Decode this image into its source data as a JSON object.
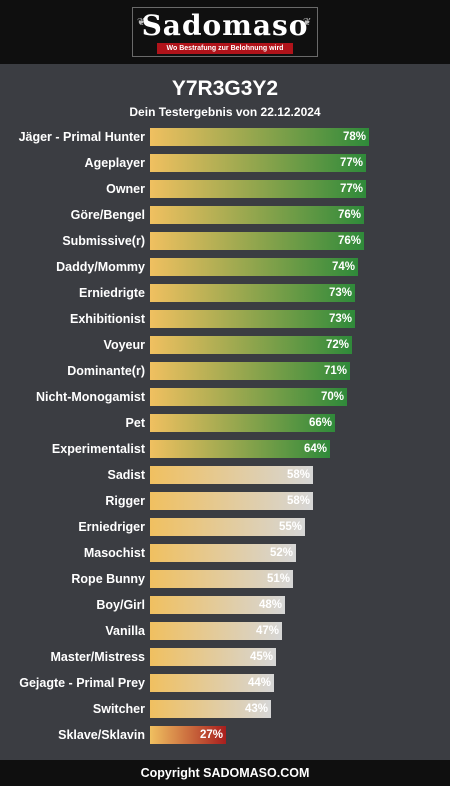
{
  "header": {
    "logo_text": "Sadomaso",
    "logo_tagline": "Wo Bestrafung zur Belohnung wird"
  },
  "title": "Y7R3G3Y2",
  "subtitle": "Dein Testergebnis von 22.12.2024",
  "footer": "Copyright SADOMASO.COM",
  "colors": {
    "background": "#3b3d42",
    "bar_start": "#f0c060",
    "high": "#2f8a3a",
    "mid": "#d6d6d6",
    "low": "#a81e1e"
  },
  "chart_data": {
    "type": "bar",
    "orientation": "horizontal",
    "title": "Y7R3G3Y2",
    "subtitle": "Dein Testergebnis von 22.12.2024",
    "xlim": [
      0,
      100
    ],
    "unit": "%",
    "categories": [
      "Jäger - Primal Hunter",
      "Ageplayer",
      "Owner",
      "Göre/Bengel",
      "Submissive(r)",
      "Daddy/Mommy",
      "Erniedrigte",
      "Exhibitionist",
      "Voyeur",
      "Dominante(r)",
      "Nicht-Monogamist",
      "Pet",
      "Experimentalist",
      "Sadist",
      "Rigger",
      "Erniedriger",
      "Masochist",
      "Rope Bunny",
      "Boy/Girl",
      "Vanilla",
      "Master/Mistress",
      "Gejagte - Primal Prey",
      "Switcher",
      "Sklave/Sklavin"
    ],
    "values": [
      78,
      77,
      77,
      76,
      76,
      74,
      73,
      73,
      72,
      71,
      70,
      66,
      64,
      58,
      58,
      55,
      52,
      51,
      48,
      47,
      45,
      44,
      43,
      27
    ],
    "labels": [
      "78%",
      "77%",
      "77%",
      "76%",
      "76%",
      "74%",
      "73%",
      "73%",
      "72%",
      "71%",
      "70%",
      "66%",
      "64%",
      "58%",
      "58%",
      "55%",
      "52%",
      "51%",
      "48%",
      "47%",
      "45%",
      "44%",
      "43%",
      "27%"
    ]
  }
}
